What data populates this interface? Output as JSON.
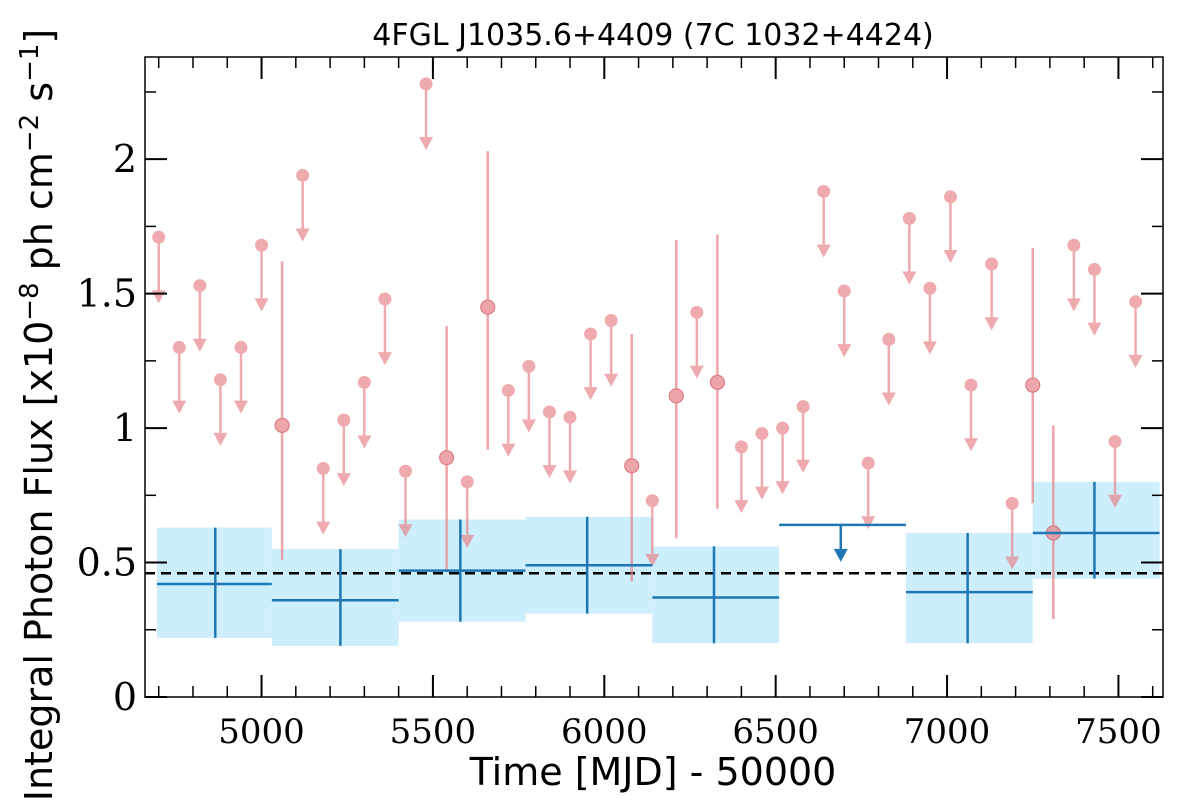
{
  "chart_data": {
    "type": "scatter",
    "title": "4FGL J1035.6+4409 (7C 1032+4424)",
    "xlabel": "Time [MJD] - 50000",
    "ylabel_base": "Integral Photon Flux [x10",
    "ylabel_exp1": "−8",
    "ylabel_mid": " ph cm",
    "ylabel_exp2": "−2",
    "ylabel_mid2": " s",
    "ylabel_exp3": "−1",
    "ylabel_end": "]",
    "xlim": [
      4660,
      7630
    ],
    "ylim": [
      0,
      2.38
    ],
    "x_ticks": [
      {
        "value": 5000,
        "label": "5000"
      },
      {
        "value": 5500,
        "label": "5500"
      },
      {
        "value": 6000,
        "label": "6000"
      },
      {
        "value": 6500,
        "label": "6500"
      },
      {
        "value": 7000,
        "label": "7000"
      },
      {
        "value": 7500,
        "label": "7500"
      }
    ],
    "y_ticks": [
      {
        "value": 0,
        "label": "0"
      },
      {
        "value": 0.5,
        "label": "0.5"
      },
      {
        "value": 1,
        "label": "1"
      },
      {
        "value": 1.5,
        "label": "1.5"
      },
      {
        "value": 2,
        "label": "2"
      }
    ],
    "mean_flux": 0.46,
    "colors": {
      "short_bins": "#e8878d",
      "long_bins": "#1f77b4",
      "long_band": "#cdeefc",
      "mean_line": "#000000"
    },
    "short_bin_upper_limits": [
      {
        "x": 4700,
        "y": 1.71
      },
      {
        "x": 4760,
        "y": 1.3
      },
      {
        "x": 4820,
        "y": 1.53
      },
      {
        "x": 4880,
        "y": 1.18
      },
      {
        "x": 4940,
        "y": 1.3
      },
      {
        "x": 5000,
        "y": 1.68
      },
      {
        "x": 5120,
        "y": 1.94
      },
      {
        "x": 5180,
        "y": 0.85
      },
      {
        "x": 5240,
        "y": 1.03
      },
      {
        "x": 5300,
        "y": 1.17
      },
      {
        "x": 5360,
        "y": 1.48
      },
      {
        "x": 5420,
        "y": 0.84
      },
      {
        "x": 5480,
        "y": 2.28
      },
      {
        "x": 5600,
        "y": 0.8
      },
      {
        "x": 5720,
        "y": 1.14
      },
      {
        "x": 5780,
        "y": 1.23
      },
      {
        "x": 5840,
        "y": 1.06
      },
      {
        "x": 5900,
        "y": 1.04
      },
      {
        "x": 5960,
        "y": 1.35
      },
      {
        "x": 6020,
        "y": 1.4
      },
      {
        "x": 6140,
        "y": 0.73
      },
      {
        "x": 6270,
        "y": 1.43
      },
      {
        "x": 6400,
        "y": 0.93
      },
      {
        "x": 6460,
        "y": 0.98
      },
      {
        "x": 6520,
        "y": 1.0
      },
      {
        "x": 6580,
        "y": 1.08
      },
      {
        "x": 6640,
        "y": 1.88
      },
      {
        "x": 6700,
        "y": 1.51
      },
      {
        "x": 6770,
        "y": 0.87
      },
      {
        "x": 6830,
        "y": 1.33
      },
      {
        "x": 6890,
        "y": 1.78
      },
      {
        "x": 6950,
        "y": 1.52
      },
      {
        "x": 7010,
        "y": 1.86
      },
      {
        "x": 7070,
        "y": 1.16
      },
      {
        "x": 7130,
        "y": 1.61
      },
      {
        "x": 7190,
        "y": 0.72
      },
      {
        "x": 7370,
        "y": 1.68
      },
      {
        "x": 7430,
        "y": 1.59
      },
      {
        "x": 7490,
        "y": 0.95
      },
      {
        "x": 7550,
        "y": 1.47
      }
    ],
    "short_bin_detections": [
      {
        "x": 5060,
        "y": 1.01,
        "ylo": 0.51,
        "yhi": 1.62
      },
      {
        "x": 5540,
        "y": 0.89,
        "ylo": 0.47,
        "yhi": 1.38
      },
      {
        "x": 5660,
        "y": 1.45,
        "ylo": 0.92,
        "yhi": 2.03
      },
      {
        "x": 6080,
        "y": 0.86,
        "ylo": 0.43,
        "yhi": 1.35
      },
      {
        "x": 6210,
        "y": 1.12,
        "ylo": 0.59,
        "yhi": 1.7
      },
      {
        "x": 6330,
        "y": 1.17,
        "ylo": 0.7,
        "yhi": 1.72
      },
      {
        "x": 7250,
        "y": 1.16,
        "ylo": 0.72,
        "yhi": 1.67
      },
      {
        "x": 7310,
        "y": 0.61,
        "ylo": 0.29,
        "yhi": 1.01
      }
    ],
    "long_bin_detections": [
      {
        "x": 4865,
        "xlo": 4695,
        "xhi": 5030,
        "y": 0.42,
        "ylo": 0.22,
        "yhi": 0.63
      },
      {
        "x": 5230,
        "xlo": 5030,
        "xhi": 5400,
        "y": 0.36,
        "ylo": 0.19,
        "yhi": 0.55
      },
      {
        "x": 5580,
        "xlo": 5400,
        "xhi": 5770,
        "y": 0.47,
        "ylo": 0.28,
        "yhi": 0.66
      },
      {
        "x": 5950,
        "xlo": 5770,
        "xhi": 6140,
        "y": 0.49,
        "ylo": 0.31,
        "yhi": 0.67
      },
      {
        "x": 6320,
        "xlo": 6140,
        "xhi": 6510,
        "y": 0.37,
        "ylo": 0.2,
        "yhi": 0.56
      },
      {
        "x": 7060,
        "xlo": 6880,
        "xhi": 7250,
        "y": 0.39,
        "ylo": 0.2,
        "yhi": 0.61
      },
      {
        "x": 7430,
        "xlo": 7250,
        "xhi": 7620,
        "y": 0.61,
        "ylo": 0.44,
        "yhi": 0.8
      }
    ],
    "long_bin_upper_limits": [
      {
        "x": 6690,
        "xlo": 6510,
        "xhi": 6880,
        "y": 0.64
      }
    ]
  }
}
